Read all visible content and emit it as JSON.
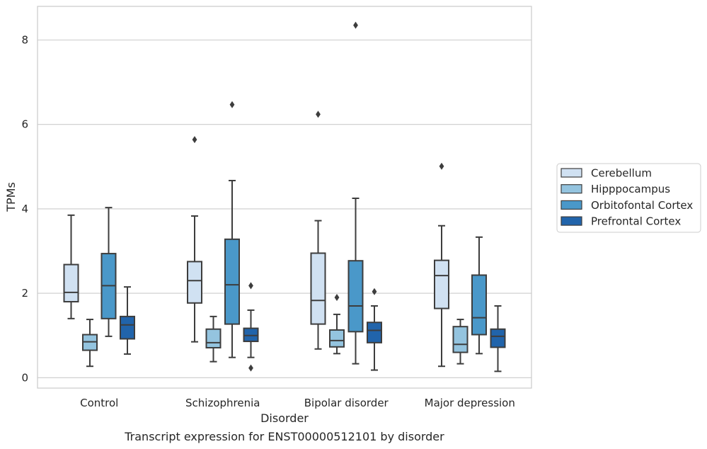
{
  "chart_data": {
    "type": "box",
    "title": "Transcript expression for ENST00000512101 by disorder",
    "xlabel": "Disorder",
    "ylabel": "TPMs",
    "ylim": [
      -0.2,
      8.75
    ],
    "yticks": [
      0,
      2,
      4,
      6,
      8
    ],
    "grid": true,
    "legend_position": "outside-right",
    "categories": [
      "Control",
      "Schizophrenia",
      "Bipolar disorder",
      "Major depression"
    ],
    "series": [
      {
        "name": "Cerebellum",
        "color": "#d0e1f2",
        "boxes": [
          {
            "whislo": 1.4,
            "q1": 1.8,
            "med": 2.02,
            "q3": 2.68,
            "whishi": 3.85,
            "fliers": []
          },
          {
            "whislo": 0.85,
            "q1": 1.77,
            "med": 2.3,
            "q3": 2.75,
            "whishi": 3.83,
            "fliers": [
              5.64
            ]
          },
          {
            "whislo": 0.68,
            "q1": 1.27,
            "med": 1.83,
            "q3": 2.95,
            "whishi": 3.72,
            "fliers": [
              6.24
            ]
          },
          {
            "whislo": 0.27,
            "q1": 1.64,
            "med": 2.42,
            "q3": 2.78,
            "whishi": 3.6,
            "fliers": [
              5.01
            ]
          }
        ]
      },
      {
        "name": "Hipppocampus",
        "color": "#94c4df",
        "boxes": [
          {
            "whislo": 0.27,
            "q1": 0.65,
            "med": 0.85,
            "q3": 1.02,
            "whishi": 1.38,
            "fliers": []
          },
          {
            "whislo": 0.38,
            "q1": 0.71,
            "med": 0.83,
            "q3": 1.15,
            "whishi": 1.45,
            "fliers": []
          },
          {
            "whislo": 0.57,
            "q1": 0.73,
            "med": 0.88,
            "q3": 1.13,
            "whishi": 1.5,
            "fliers": [
              1.9
            ]
          },
          {
            "whislo": 0.33,
            "q1": 0.6,
            "med": 0.79,
            "q3": 1.21,
            "whishi": 1.38,
            "fliers": []
          }
        ]
      },
      {
        "name": "Orbitofontal Cortex",
        "color": "#4a98c9",
        "boxes": [
          {
            "whislo": 0.98,
            "q1": 1.4,
            "med": 2.18,
            "q3": 2.94,
            "whishi": 4.03,
            "fliers": []
          },
          {
            "whislo": 0.48,
            "q1": 1.27,
            "med": 2.2,
            "q3": 3.28,
            "whishi": 4.67,
            "fliers": [
              6.47
            ]
          },
          {
            "whislo": 0.33,
            "q1": 1.09,
            "med": 1.7,
            "q3": 2.77,
            "whishi": 4.25,
            "fliers": [
              8.35
            ]
          },
          {
            "whislo": 0.57,
            "q1": 1.02,
            "med": 1.42,
            "q3": 2.43,
            "whishi": 3.33,
            "fliers": []
          }
        ]
      },
      {
        "name": "Prefrontal Cortex",
        "color": "#2164ab",
        "boxes": [
          {
            "whislo": 0.56,
            "q1": 0.92,
            "med": 1.25,
            "q3": 1.45,
            "whishi": 2.15,
            "fliers": []
          },
          {
            "whislo": 0.48,
            "q1": 0.86,
            "med": 1.0,
            "q3": 1.17,
            "whishi": 1.6,
            "fliers": [
              2.18,
              0.23
            ]
          },
          {
            "whislo": 0.18,
            "q1": 0.83,
            "med": 1.12,
            "q3": 1.31,
            "whishi": 1.7,
            "fliers": [
              2.04
            ]
          },
          {
            "whislo": 0.15,
            "q1": 0.72,
            "med": 0.98,
            "q3": 1.15,
            "whishi": 1.7,
            "fliers": []
          }
        ]
      }
    ]
  }
}
